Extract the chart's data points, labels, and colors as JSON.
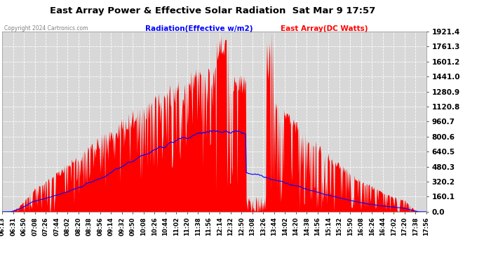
{
  "title": "East Array Power & Effective Solar Radiation  Sat Mar 9 17:57",
  "copyright": "Copyright 2024 Cartronics.com",
  "legend_radiation": "Radiation(Effective w/m2)",
  "legend_array": "East Array(DC Watts)",
  "legend_radiation_color": "blue",
  "legend_array_color": "red",
  "ymin": 0.0,
  "ymax": 1921.4,
  "yticks": [
    0.0,
    160.1,
    320.2,
    480.3,
    640.5,
    800.6,
    960.7,
    1120.8,
    1280.9,
    1441.0,
    1601.2,
    1761.3,
    1921.4
  ],
  "ytick_labels": [
    "0.0",
    "160.1",
    "320.2",
    "480.3",
    "640.5",
    "800.6",
    "960.7",
    "1120.8",
    "1280.9",
    "1441.0",
    "1601.2",
    "1761.3",
    "1921.4"
  ],
  "background_color": "#ffffff",
  "plot_bg_color": "#d8d8d8",
  "grid_color": "#ffffff",
  "fill_color": "red",
  "line_color": "blue",
  "title_color": "#000000",
  "x_labels": [
    "06:13",
    "06:31",
    "06:50",
    "07:08",
    "07:26",
    "07:44",
    "08:02",
    "08:20",
    "08:38",
    "08:56",
    "09:14",
    "09:32",
    "09:50",
    "10:08",
    "10:26",
    "10:44",
    "11:02",
    "11:20",
    "11:38",
    "11:56",
    "12:14",
    "12:32",
    "12:50",
    "13:08",
    "13:26",
    "13:44",
    "14:02",
    "14:20",
    "14:38",
    "14:56",
    "15:14",
    "15:32",
    "15:50",
    "16:08",
    "16:26",
    "16:44",
    "17:02",
    "17:20",
    "17:38",
    "17:56"
  ]
}
